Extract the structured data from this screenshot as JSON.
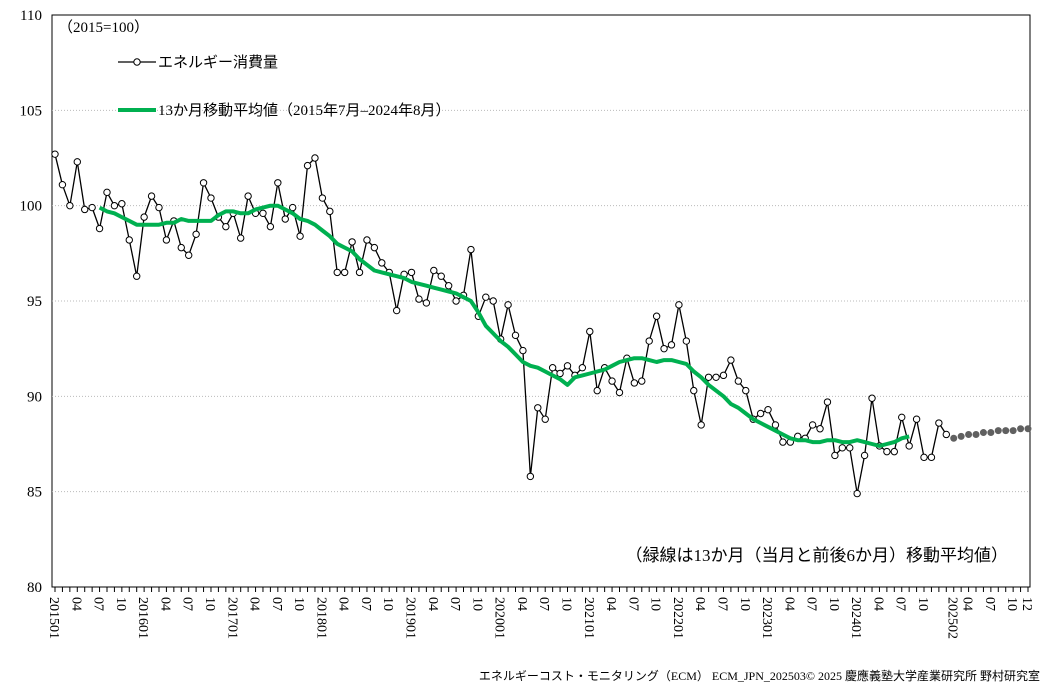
{
  "chart_data": {
    "type": "line",
    "note": "（2015=100）",
    "annotation": "（緑線は13か月（当月と前後6か月）移動平均値）",
    "footer": "エネルギーコスト・モニタリング（ECM） ECM_JPN_202503© 2025 慶應義塾大学産業研究所 野村研究室",
    "ylim": [
      80,
      110
    ],
    "yticks": [
      80,
      85,
      90,
      95,
      100,
      105,
      110
    ],
    "grid": true,
    "categories": [
      "201501",
      null,
      null,
      "04",
      null,
      null,
      "07",
      null,
      null,
      "10",
      null,
      null,
      "201601",
      null,
      null,
      "04",
      null,
      null,
      "07",
      null,
      null,
      "10",
      null,
      null,
      "201701",
      null,
      null,
      "04",
      null,
      null,
      "07",
      null,
      null,
      "10",
      null,
      null,
      "201801",
      null,
      null,
      "04",
      null,
      null,
      "07",
      null,
      null,
      "10",
      null,
      null,
      "201901",
      null,
      null,
      "04",
      null,
      null,
      "07",
      null,
      null,
      "10",
      null,
      null,
      "202001",
      null,
      null,
      "04",
      null,
      null,
      "07",
      null,
      null,
      "10",
      null,
      null,
      "202101",
      null,
      null,
      "04",
      null,
      null,
      "07",
      null,
      null,
      "10",
      null,
      null,
      "202201",
      null,
      null,
      "04",
      null,
      null,
      "07",
      null,
      null,
      "10",
      null,
      null,
      "202301",
      null,
      null,
      "04",
      null,
      null,
      "07",
      null,
      null,
      "10",
      null,
      null,
      "202401",
      null,
      null,
      "04",
      null,
      null,
      "07",
      null,
      null,
      "10",
      null,
      null,
      null,
      "202502",
      null,
      "04",
      null,
      null,
      "07",
      null,
      null,
      "10",
      null,
      "12"
    ],
    "series": [
      {
        "name": "エネルギー消費量",
        "color": "#000000",
        "marker": "circle",
        "values": [
          102.7,
          101.1,
          100.0,
          102.3,
          99.8,
          99.9,
          98.8,
          100.7,
          100.0,
          100.1,
          98.2,
          96.3,
          99.4,
          100.5,
          99.9,
          98.2,
          99.2,
          97.8,
          97.4,
          98.5,
          101.2,
          100.4,
          99.4,
          98.9,
          99.6,
          98.3,
          100.5,
          99.6,
          99.6,
          98.9,
          101.2,
          99.3,
          99.9,
          98.4,
          102.1,
          102.5,
          100.4,
          99.7,
          96.5,
          96.5,
          98.1,
          96.5,
          98.2,
          97.8,
          97.0,
          96.5,
          94.5,
          96.4,
          96.5,
          95.1,
          94.9,
          96.6,
          96.3,
          95.8,
          95.0,
          95.3,
          97.7,
          94.2,
          95.2,
          95.0,
          93.0,
          94.8,
          93.2,
          92.4,
          85.8,
          89.4,
          88.8,
          91.5,
          91.2,
          91.6,
          91.1,
          91.5,
          93.4,
          90.3,
          91.5,
          90.8,
          90.2,
          92.0,
          90.7,
          90.8,
          92.9,
          94.2,
          92.5,
          92.7,
          94.8,
          92.9,
          90.3,
          88.5,
          91.0,
          91.0,
          91.1,
          91.9,
          90.8,
          90.3,
          88.8,
          89.1,
          89.3,
          88.5,
          87.6,
          87.6,
          87.9,
          87.8,
          88.5,
          88.3,
          89.7,
          86.9,
          87.3,
          87.3,
          84.9,
          86.9,
          89.9,
          87.4,
          87.1,
          87.1,
          88.9,
          87.4,
          88.8,
          86.8,
          86.8,
          88.6,
          88.0,
          null,
          null,
          null,
          null,
          null,
          null,
          null,
          null,
          null,
          null,
          null
        ]
      },
      {
        "name": "13か月移動平均値（2015年7月–2024年8月）",
        "color": "#00b050",
        "marker": "none",
        "values": [
          null,
          null,
          null,
          null,
          null,
          null,
          99.9,
          99.7,
          99.6,
          99.4,
          99.2,
          99.0,
          99.0,
          99.0,
          99.0,
          99.1,
          99.1,
          99.3,
          99.2,
          99.2,
          99.2,
          99.2,
          99.5,
          99.7,
          99.7,
          99.6,
          99.6,
          99.8,
          99.9,
          100.0,
          100.0,
          99.8,
          99.6,
          99.3,
          99.2,
          99.0,
          98.7,
          98.4,
          98.0,
          97.8,
          97.6,
          97.2,
          96.9,
          96.6,
          96.5,
          96.4,
          96.3,
          96.2,
          96.0,
          95.9,
          95.8,
          95.7,
          95.6,
          95.5,
          95.4,
          95.2,
          95.0,
          94.4,
          93.7,
          93.3,
          92.9,
          92.6,
          92.2,
          91.8,
          91.6,
          91.5,
          91.3,
          91.1,
          90.9,
          90.6,
          91.0,
          91.1,
          91.2,
          91.3,
          91.4,
          91.6,
          91.8,
          91.9,
          92.0,
          92.0,
          91.9,
          91.8,
          91.9,
          91.9,
          91.8,
          91.7,
          91.3,
          91.0,
          90.6,
          90.3,
          90.0,
          89.6,
          89.4,
          89.1,
          88.8,
          88.6,
          88.4,
          88.2,
          88.0,
          87.8,
          87.7,
          87.7,
          87.6,
          87.6,
          87.7,
          87.7,
          87.6,
          87.6,
          87.7,
          87.6,
          87.5,
          87.4,
          87.5,
          87.6,
          87.8,
          87.9,
          null,
          null,
          null,
          null,
          null,
          null,
          null,
          null,
          null,
          null,
          null,
          null,
          null,
          null,
          null,
          null
        ]
      },
      {
        "color": "#606060",
        "marker": "dot",
        "values": [
          null,
          null,
          null,
          null,
          null,
          null,
          null,
          null,
          null,
          null,
          null,
          null,
          null,
          null,
          null,
          null,
          null,
          null,
          null,
          null,
          null,
          null,
          null,
          null,
          null,
          null,
          null,
          null,
          null,
          null,
          null,
          null,
          null,
          null,
          null,
          null,
          null,
          null,
          null,
          null,
          null,
          null,
          null,
          null,
          null,
          null,
          null,
          null,
          null,
          null,
          null,
          null,
          null,
          null,
          null,
          null,
          null,
          null,
          null,
          null,
          null,
          null,
          null,
          null,
          null,
          null,
          null,
          null,
          null,
          null,
          null,
          null,
          null,
          null,
          null,
          null,
          null,
          null,
          null,
          null,
          null,
          null,
          null,
          null,
          null,
          null,
          null,
          null,
          null,
          null,
          null,
          null,
          null,
          null,
          null,
          null,
          null,
          null,
          null,
          null,
          null,
          null,
          null,
          null,
          null,
          null,
          null,
          null,
          null,
          null,
          null,
          null,
          null,
          null,
          null,
          null,
          null,
          null,
          null,
          null,
          null,
          87.8,
          87.9,
          88.0,
          88.0,
          88.1,
          88.1,
          88.2,
          88.2,
          88.2,
          88.3,
          88.3
        ]
      }
    ]
  }
}
